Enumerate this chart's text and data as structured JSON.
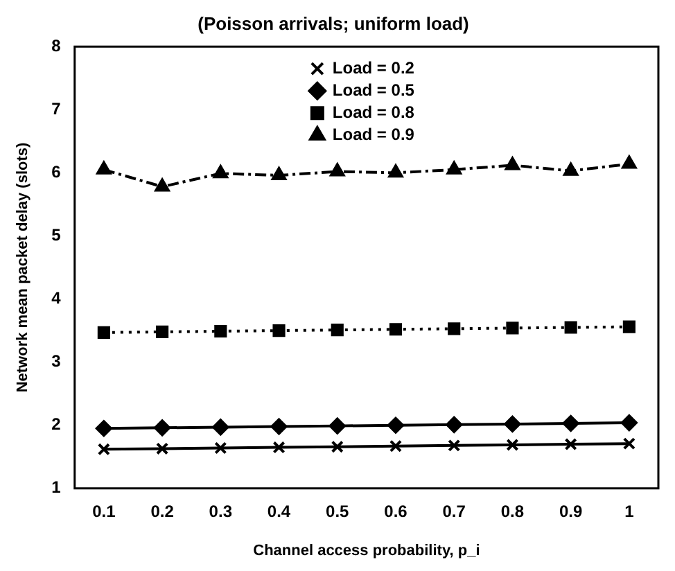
{
  "chart_data": {
    "type": "line",
    "title": "(Poisson arrivals; uniform load)",
    "xlabel": "Channel access probability, p_i",
    "ylabel": "Network mean packet delay (slots)",
    "categories": [
      "0.1",
      "0.2",
      "0.3",
      "0.4",
      "0.5",
      "0.6",
      "0.7",
      "0.8",
      "0.9",
      "1"
    ],
    "ylim": [
      1,
      8
    ],
    "yticks": [
      1,
      2,
      3,
      4,
      5,
      6,
      7,
      8
    ],
    "grid": false,
    "legend": "top",
    "series": [
      {
        "name": "Load = 0.2",
        "color": "#000000",
        "marker": "cross",
        "line_style": "solid",
        "values": [
          1.62,
          1.63,
          1.64,
          1.65,
          1.66,
          1.67,
          1.68,
          1.69,
          1.7,
          1.71
        ]
      },
      {
        "name": "Load = 0.5",
        "color": "#000000",
        "marker": "diamond",
        "line_style": "solid",
        "values": [
          1.95,
          1.96,
          1.97,
          1.98,
          1.99,
          2.0,
          2.01,
          2.02,
          2.03,
          2.04
        ]
      },
      {
        "name": "Load = 0.8",
        "color": "#000000",
        "marker": "square",
        "line_style": "dotted",
        "values": [
          3.47,
          3.48,
          3.49,
          3.5,
          3.51,
          3.52,
          3.53,
          3.54,
          3.55,
          3.56
        ]
      },
      {
        "name": "Load = 0.9",
        "color": "#000000",
        "marker": "triangle",
        "line_style": "dashed",
        "values": [
          6.05,
          5.78,
          5.99,
          5.96,
          6.02,
          6.0,
          6.05,
          6.12,
          6.03,
          6.14
        ]
      }
    ]
  }
}
